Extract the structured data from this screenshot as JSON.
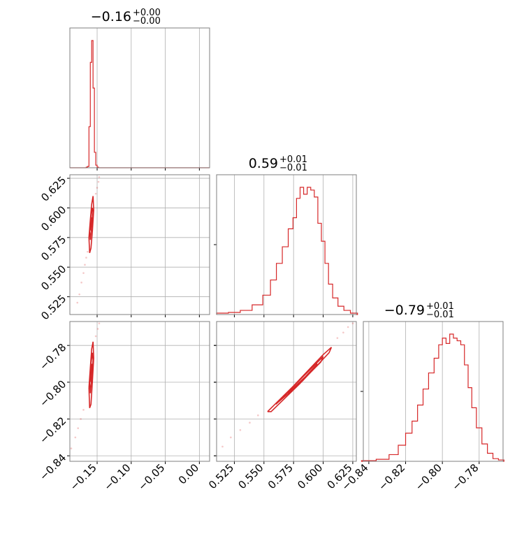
{
  "chart_data": {
    "type": "corner",
    "colors": {
      "series": "#d62728",
      "grid": "#b0b0b0",
      "frame": "#7f7f7f"
    },
    "grid": true,
    "params": [
      {
        "median": "-0.16",
        "err_plus": "+0.00",
        "err_minus": "-0.00",
        "range": [
          -0.19,
          0.015
        ],
        "ticks": [
          -0.15,
          -0.1,
          -0.05,
          0.0
        ],
        "tick_labels": [
          "−0.15",
          "−0.10",
          "−0.05",
          "0.00"
        ]
      },
      {
        "median": "0.59",
        "err_plus": "+0.01",
        "err_minus": "-0.01",
        "range": [
          0.51,
          0.628
        ],
        "ticks": [
          0.525,
          0.55,
          0.575,
          0.6,
          0.625
        ],
        "tick_labels": [
          "0.525",
          "0.550",
          "0.575",
          "0.600",
          "0.625"
        ]
      },
      {
        "median": "-0.79",
        "err_plus": "+0.01",
        "err_minus": "-0.01",
        "range": [
          -0.843,
          -0.767
        ],
        "ticks": [
          -0.84,
          -0.82,
          -0.8,
          -0.78
        ],
        "tick_labels": [
          "−0.84",
          "−0.82",
          "−0.80",
          "−0.78"
        ]
      }
    ],
    "hist": [
      {
        "bins": [
          [
            -0.165,
            0.005
          ],
          [
            -0.163,
            0.01
          ],
          [
            -0.161,
            0.32
          ],
          [
            -0.159,
            0.82
          ],
          [
            -0.157,
            0.99
          ],
          [
            -0.155,
            0.62
          ],
          [
            -0.153,
            0.12
          ],
          [
            -0.151,
            0.02
          ],
          [
            -0.149,
            0.005
          ]
        ]
      },
      {
        "bins": [
          [
            0.515,
            0.01
          ],
          [
            0.525,
            0.015
          ],
          [
            0.535,
            0.03
          ],
          [
            0.545,
            0.07
          ],
          [
            0.553,
            0.14
          ],
          [
            0.558,
            0.25
          ],
          [
            0.563,
            0.37
          ],
          [
            0.568,
            0.49
          ],
          [
            0.573,
            0.62
          ],
          [
            0.576,
            0.7
          ],
          [
            0.579,
            0.84
          ],
          [
            0.582,
            0.92
          ],
          [
            0.585,
            0.87
          ],
          [
            0.588,
            0.92
          ],
          [
            0.591,
            0.9
          ],
          [
            0.594,
            0.85
          ],
          [
            0.597,
            0.66
          ],
          [
            0.6,
            0.53
          ],
          [
            0.603,
            0.37
          ],
          [
            0.606,
            0.22
          ],
          [
            0.61,
            0.12
          ],
          [
            0.615,
            0.06
          ],
          [
            0.62,
            0.03
          ],
          [
            0.626,
            0.01
          ]
        ]
      },
      {
        "bins": [
          [
            -0.84,
            0.005
          ],
          [
            -0.832,
            0.015
          ],
          [
            -0.826,
            0.05
          ],
          [
            -0.822,
            0.12
          ],
          [
            -0.818,
            0.21
          ],
          [
            -0.815,
            0.3
          ],
          [
            -0.812,
            0.42
          ],
          [
            -0.809,
            0.54
          ],
          [
            -0.806,
            0.66
          ],
          [
            -0.803,
            0.77
          ],
          [
            -0.801,
            0.87
          ],
          [
            -0.799,
            0.92
          ],
          [
            -0.797,
            0.88
          ],
          [
            -0.795,
            0.95
          ],
          [
            -0.793,
            0.92
          ],
          [
            -0.791,
            0.9
          ],
          [
            -0.789,
            0.87
          ],
          [
            -0.787,
            0.72
          ],
          [
            -0.785,
            0.55
          ],
          [
            -0.783,
            0.4
          ],
          [
            -0.78,
            0.25
          ],
          [
            -0.777,
            0.13
          ],
          [
            -0.774,
            0.06
          ],
          [
            -0.771,
            0.02
          ],
          [
            -0.768,
            0.01
          ]
        ]
      }
    ],
    "contours": {
      "p1_vs_p0": [
        [
          [
            -0.162,
            0.575
          ],
          [
            -0.16,
            0.59
          ],
          [
            -0.158,
            0.603
          ],
          [
            -0.156,
            0.61
          ],
          [
            -0.155,
            0.598
          ],
          [
            -0.157,
            0.58
          ],
          [
            -0.159,
            0.566
          ],
          [
            -0.161,
            0.562
          ],
          [
            -0.162,
            0.575
          ]
        ],
        [
          [
            -0.161,
            0.58
          ],
          [
            -0.159,
            0.592
          ],
          [
            -0.157,
            0.6
          ],
          [
            -0.156,
            0.597
          ],
          [
            -0.158,
            0.584
          ],
          [
            -0.16,
            0.573
          ],
          [
            -0.161,
            0.58
          ]
        ],
        [
          [
            -0.16,
            0.584
          ],
          [
            -0.158,
            0.592
          ],
          [
            -0.157,
            0.59
          ],
          [
            -0.159,
            0.581
          ],
          [
            -0.16,
            0.584
          ]
        ]
      ],
      "p2_vs_p0": [
        [
          [
            -0.162,
            -0.803
          ],
          [
            -0.16,
            -0.792
          ],
          [
            -0.158,
            -0.782
          ],
          [
            -0.156,
            -0.778
          ],
          [
            -0.155,
            -0.787
          ],
          [
            -0.157,
            -0.8
          ],
          [
            -0.159,
            -0.812
          ],
          [
            -0.161,
            -0.814
          ],
          [
            -0.162,
            -0.803
          ]
        ],
        [
          [
            -0.161,
            -0.8
          ],
          [
            -0.159,
            -0.79
          ],
          [
            -0.157,
            -0.784
          ],
          [
            -0.156,
            -0.788
          ],
          [
            -0.158,
            -0.798
          ],
          [
            -0.16,
            -0.806
          ],
          [
            -0.161,
            -0.8
          ]
        ],
        [
          [
            -0.16,
            -0.797
          ],
          [
            -0.158,
            -0.79
          ],
          [
            -0.157,
            -0.792
          ],
          [
            -0.159,
            -0.8
          ],
          [
            -0.16,
            -0.797
          ]
        ]
      ],
      "p2_vs_p1": [
        [
          [
            0.553,
            -0.816
          ],
          [
            0.575,
            -0.802
          ],
          [
            0.6,
            -0.785
          ],
          [
            0.607,
            -0.781
          ],
          [
            0.605,
            -0.784
          ],
          [
            0.58,
            -0.801
          ],
          [
            0.556,
            -0.816
          ],
          [
            0.553,
            -0.816
          ]
        ],
        [
          [
            0.56,
            -0.812
          ],
          [
            0.58,
            -0.799
          ],
          [
            0.6,
            -0.786
          ],
          [
            0.598,
            -0.789
          ],
          [
            0.578,
            -0.802
          ],
          [
            0.56,
            -0.812
          ]
        ],
        [
          [
            0.57,
            -0.806
          ],
          [
            0.585,
            -0.797
          ],
          [
            0.595,
            -0.79
          ],
          [
            0.583,
            -0.799
          ],
          [
            0.57,
            -0.806
          ]
        ]
      ]
    },
    "scatter_tail": {
      "p1_vs_p0": [
        [
          -0.179,
          0.52
        ],
        [
          -0.176,
          0.527
        ],
        [
          -0.173,
          0.537
        ],
        [
          -0.17,
          0.545
        ],
        [
          -0.168,
          0.552
        ],
        [
          -0.166,
          0.558
        ],
        [
          -0.164,
          0.563
        ],
        [
          -0.152,
          0.612
        ],
        [
          -0.15,
          0.617
        ],
        [
          -0.148,
          0.622
        ],
        [
          -0.147,
          0.626
        ]
      ],
      "p2_vs_p0": [
        [
          -0.188,
          -0.836
        ],
        [
          -0.182,
          -0.83
        ],
        [
          -0.178,
          -0.825
        ],
        [
          -0.174,
          -0.82
        ],
        [
          -0.17,
          -0.815
        ],
        [
          -0.152,
          -0.775
        ],
        [
          -0.149,
          -0.771
        ],
        [
          -0.147,
          -0.768
        ]
      ],
      "p2_vs_p1": [
        [
          0.515,
          -0.835
        ],
        [
          0.522,
          -0.83
        ],
        [
          0.53,
          -0.826
        ],
        [
          0.538,
          -0.822
        ],
        [
          0.545,
          -0.818
        ],
        [
          0.612,
          -0.776
        ],
        [
          0.617,
          -0.773
        ],
        [
          0.621,
          -0.77
        ],
        [
          0.625,
          -0.768
        ]
      ]
    }
  }
}
